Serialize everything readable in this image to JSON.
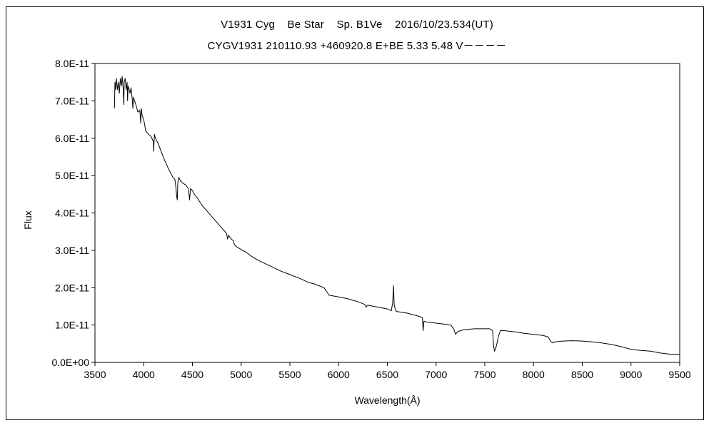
{
  "chart_data": {
    "type": "line",
    "title": "V1931 Cyg    Be Star    Sp. B1Ve    2016/10/23.534(UT)",
    "subtitle": "CYGV1931 210110.93 +460920.8 E+BE 5.33 5.48 V－－－－",
    "xlabel": "Wavelength(Å)",
    "ylabel": "Flux",
    "xlim": [
      3500,
      9500
    ],
    "ylim": [
      0,
      8e-11
    ],
    "x_ticks": [
      3500,
      4000,
      4500,
      5000,
      5500,
      6000,
      6500,
      7000,
      7500,
      8000,
      8500,
      9000,
      9500
    ],
    "x_tick_labels": [
      "3500",
      "4000",
      "4500",
      "5000",
      "5500",
      "6000",
      "6500",
      "7000",
      "7500",
      "8000",
      "8500",
      "9000",
      "9500"
    ],
    "y_ticks": [
      0,
      1e-11,
      2e-11,
      3e-11,
      4e-11,
      5e-11,
      6e-11,
      7e-11,
      8e-11
    ],
    "y_tick_labels": [
      "0.0E+00",
      "1.0E-11",
      "2.0E-11",
      "3.0E-11",
      "4.0E-11",
      "5.0E-11",
      "6.0E-11",
      "7.0E-11",
      "8.0E-11"
    ],
    "grid": false,
    "legend": "none",
    "series": [
      {
        "color": "#000000",
        "x": [
          3700,
          3705,
          3710,
          3720,
          3730,
          3740,
          3750,
          3760,
          3770,
          3780,
          3790,
          3797,
          3800,
          3810,
          3820,
          3830,
          3835,
          3840,
          3850,
          3860,
          3870,
          3880,
          3889,
          3895,
          3900,
          3920,
          3940,
          3960,
          3970,
          3975,
          3985,
          4000,
          4020,
          4050,
          4075,
          4100,
          4102,
          4110,
          4120,
          4150,
          4200,
          4250,
          4300,
          4320,
          4330,
          4340,
          4345,
          4350,
          4360,
          4380,
          4400,
          4430,
          4460,
          4471,
          4480,
          4500,
          4520,
          4550,
          4600,
          4650,
          4700,
          4750,
          4800,
          4850,
          4861,
          4870,
          4900,
          4922,
          4930,
          4950,
          5000,
          5050,
          5100,
          5150,
          5200,
          5300,
          5400,
          5500,
          5600,
          5700,
          5750,
          5800,
          5850,
          5876,
          5890,
          5900,
          6000,
          6100,
          6200,
          6270,
          6280,
          6300,
          6400,
          6500,
          6540,
          6555,
          6563,
          6570,
          6585,
          6600,
          6700,
          6800,
          6860,
          6867,
          6875,
          6900,
          7000,
          7100,
          7150,
          7180,
          7200,
          7220,
          7250,
          7300,
          7400,
          7500,
          7550,
          7580,
          7590,
          7600,
          7620,
          7640,
          7660,
          7700,
          7800,
          7900,
          8000,
          8100,
          8150,
          8180,
          8200,
          8220,
          8300,
          8400,
          8500,
          8600,
          8700,
          8800,
          8900,
          9000,
          9100,
          9200,
          9300,
          9400,
          9500
        ],
        "values": [
          6.8e-11,
          7.5e-11,
          7.3e-11,
          7.6e-11,
          7.3e-11,
          7.5e-11,
          7.2e-11,
          7.6e-11,
          7.4e-11,
          7.65e-11,
          7.3e-11,
          6.9e-11,
          7.5e-11,
          7.6e-11,
          7.3e-11,
          7.5e-11,
          7e-11,
          7.4e-11,
          7.3e-11,
          7.2e-11,
          7.35e-11,
          7.1e-11,
          6.8e-11,
          7.1e-11,
          7.05e-11,
          6.9e-11,
          6.7e-11,
          6.75e-11,
          6.4e-11,
          6.8e-11,
          6.6e-11,
          6.5e-11,
          6.2e-11,
          6.1e-11,
          6.05e-11,
          5.9e-11,
          5.65e-11,
          6.1e-11,
          6e-11,
          5.85e-11,
          5.5e-11,
          5.2e-11,
          4.95e-11,
          4.9e-11,
          4.7e-11,
          4.4e-11,
          4.35e-11,
          4.8e-11,
          4.95e-11,
          4.85e-11,
          4.8e-11,
          4.75e-11,
          4.65e-11,
          4.35e-11,
          4.65e-11,
          4.6e-11,
          4.5e-11,
          4.4e-11,
          4.2e-11,
          4.05e-11,
          3.9e-11,
          3.75e-11,
          3.6e-11,
          3.45e-11,
          3.3e-11,
          3.4e-11,
          3.3e-11,
          3.25e-11,
          3.15e-11,
          3.1e-11,
          3.02e-11,
          2.95e-11,
          2.85e-11,
          2.77e-11,
          2.7e-11,
          2.58e-11,
          2.45e-11,
          2.35e-11,
          2.25e-11,
          2.13e-11,
          2.1e-11,
          2.05e-11,
          2e-11,
          1.9e-11,
          1.85e-11,
          1.8e-11,
          1.75e-11,
          1.7e-11,
          1.62e-11,
          1.55e-11,
          1.48e-11,
          1.53e-11,
          1.48e-11,
          1.43e-11,
          1.38e-11,
          1.6e-11,
          2.05e-11,
          1.55e-11,
          1.38e-11,
          1.36e-11,
          1.32e-11,
          1.25e-11,
          1.2e-11,
          8.5e-12,
          1.1e-11,
          1.08e-11,
          1.05e-11,
          1.02e-11,
          1e-11,
          9e-12,
          7.5e-12,
          8.2e-12,
          8.5e-12,
          8.8e-12,
          9e-12,
          9e-12,
          9e-12,
          8.5e-12,
          4.5e-12,
          3e-12,
          4.5e-12,
          7e-12,
          8.5e-12,
          8.5e-12,
          8.2e-12,
          7.8e-12,
          7.5e-12,
          7.2e-12,
          6.8e-12,
          5.5e-12,
          5.2e-12,
          5.5e-12,
          5.7e-12,
          5.8e-12,
          5.7e-12,
          5.5e-12,
          5.2e-12,
          4.8e-12,
          4.2e-12,
          3.5e-12,
          3.2e-12,
          3e-12,
          2.5e-12,
          2.2e-12,
          2.2e-12
        ]
      }
    ]
  }
}
